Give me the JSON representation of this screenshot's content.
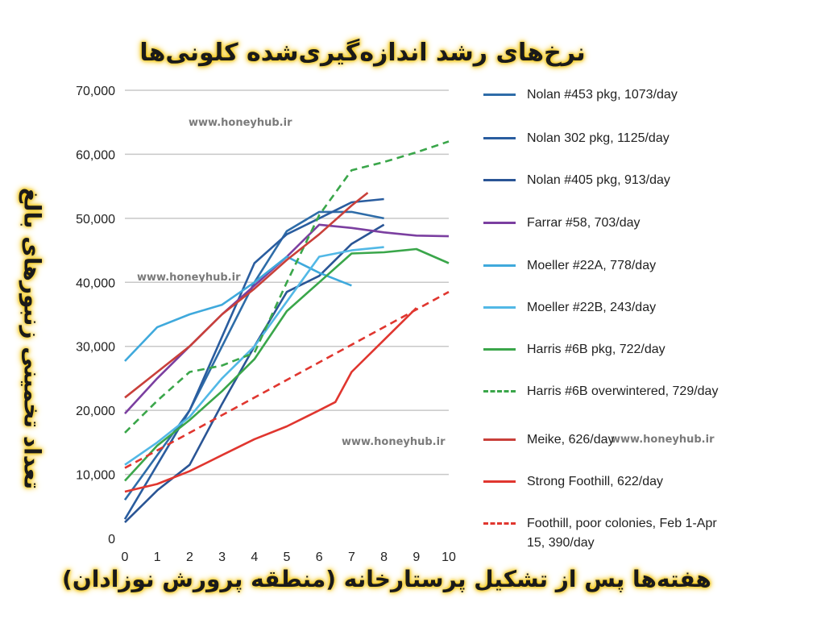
{
  "title": "نرخ‌های رشد اندازه‌گیری‌شده کلونی‌ها",
  "watermark": "www.honeyhub.ir",
  "chart_data": {
    "type": "line",
    "title": "نرخ‌های رشد اندازه‌گیری‌شده کلونی‌ها",
    "xlabel": "هفته‌ها پس از تشکیل پرستارخانه (منطقه پرورش نوزادان)",
    "ylabel": "تعداد تخمینی زنبورهای بالغ",
    "xlim": [
      0,
      10
    ],
    "ylim": [
      0,
      70000
    ],
    "xticks": [
      "0",
      "1",
      "2",
      "3",
      "4",
      "5",
      "6",
      "7",
      "8",
      "9",
      "10"
    ],
    "yticks": [
      "0",
      "10,000",
      "20,000",
      "30,000",
      "40,000",
      "50,000",
      "60,000",
      "70,000"
    ],
    "grid": "horizontal",
    "legend_position": "right",
    "series": [
      {
        "name": "Nolan #453 pkg, 1073/day",
        "color": "#2e6ca8",
        "dash": false,
        "x": [
          0,
          2,
          4,
          5,
          6,
          7,
          8
        ],
        "y": [
          6000,
          20000,
          40000,
          48000,
          51000,
          51000,
          50000
        ]
      },
      {
        "name": "Nolan 302 pkg, 1125/day",
        "color": "#2a5d9f",
        "dash": false,
        "x": [
          0,
          2,
          4,
          5,
          6,
          7,
          8
        ],
        "y": [
          3000,
          20000,
          43000,
          47500,
          50000,
          52500,
          53000
        ]
      },
      {
        "name": "Nolan #405 pkg, 913/day",
        "color": "#2a5595",
        "dash": false,
        "x": [
          0,
          1,
          2,
          3,
          4,
          5,
          6,
          7,
          8
        ],
        "y": [
          2500,
          7500,
          11500,
          21000,
          30000,
          38500,
          41000,
          46000,
          49000
        ]
      },
      {
        "name": "Farrar #58, 703/day",
        "color": "#7b3fa0",
        "dash": false,
        "x": [
          0,
          1,
          2,
          3,
          4,
          5,
          6,
          7,
          8,
          9,
          10
        ],
        "y": [
          19500,
          25000,
          30000,
          35000,
          39500,
          44000,
          49000,
          48500,
          47800,
          47300,
          47200
        ]
      },
      {
        "name": "Moeller #22A, 778/day",
        "color": "#3fa9dc",
        "dash": false,
        "x": [
          0,
          1,
          2,
          3,
          4,
          5,
          6,
          7
        ],
        "y": [
          27700,
          33000,
          35000,
          36500,
          40000,
          44000,
          41500,
          39500
        ]
      },
      {
        "name": "Moeller #22B, 243/day",
        "color": "#52b8e6",
        "dash": false,
        "x": [
          0,
          1,
          2,
          3,
          4,
          5,
          6,
          7,
          8
        ],
        "y": [
          11500,
          15000,
          19000,
          25000,
          30000,
          37000,
          44000,
          45000,
          45500
        ]
      },
      {
        "name": "Harris #6B pkg, 722/day",
        "color": "#3aa64a",
        "dash": false,
        "x": [
          0,
          1,
          2,
          3,
          4,
          5,
          6,
          7,
          8,
          9,
          10
        ],
        "y": [
          9000,
          14500,
          18500,
          23000,
          28000,
          35500,
          40000,
          44500,
          44700,
          45200,
          43000
        ]
      },
      {
        "name": "Harris #6B overwintered, 729/day",
        "color": "#3aa64a",
        "dash": true,
        "x": [
          0,
          1,
          2,
          3,
          4,
          5,
          6,
          7,
          8,
          9,
          10
        ],
        "y": [
          16500,
          21500,
          26000,
          27000,
          29000,
          40000,
          50500,
          57500,
          58800,
          60300,
          62000
        ]
      },
      {
        "name": "Meike, 626/day",
        "color": "#c9403a",
        "dash": false,
        "x": [
          0,
          1,
          2,
          3,
          4,
          5,
          6,
          7,
          7.5
        ],
        "y": [
          22000,
          26000,
          30000,
          35000,
          39000,
          43500,
          47500,
          52000,
          54000
        ]
      },
      {
        "name": "Strong Foothill, 622/day",
        "color": "#e0362f",
        "dash": false,
        "x": [
          0,
          1,
          2,
          3,
          4,
          5,
          6,
          6.5,
          7,
          8,
          9
        ],
        "y": [
          7300,
          8500,
          10500,
          13000,
          15500,
          17500,
          20000,
          21300,
          26000,
          31000,
          36000
        ]
      },
      {
        "name": "Foothill, poor colonies, Feb 1-Apr 15, 390/day",
        "color": "#e0362f",
        "dash": true,
        "x": [
          0,
          10
        ],
        "y": [
          11000,
          38500
        ]
      }
    ],
    "legend_labels": [
      "Nolan #453 pkg, 1073/day",
      "Nolan 302 pkg, 1125/day",
      "Nolan #405 pkg, 913/day",
      "Farrar #58, 703/day",
      "Moeller #22A, 778/day",
      "Moeller #22B, 243/day",
      "Harris #6B pkg, 722/day",
      "Harris #6B overwintered, 729/day",
      "Meike, 626/day",
      "Strong Foothill, 622/day",
      "Foothill, poor colonies, Feb 1-Apr 15, 390/day"
    ]
  }
}
